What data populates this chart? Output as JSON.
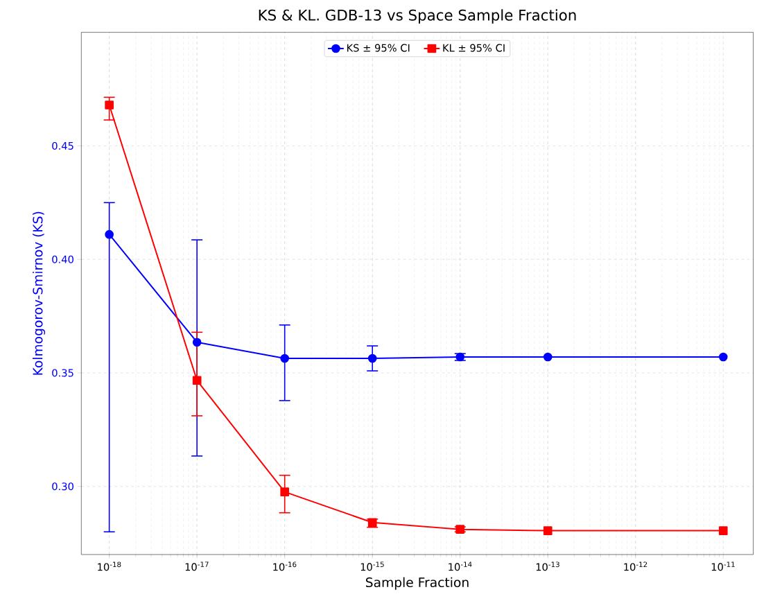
{
  "chart_data": {
    "type": "line",
    "title": "KS & KL. GDB-13 vs Space Sample Fraction",
    "xlabel": "Sample Fraction",
    "ylabel": "Kolmogorov-Smirnov (KS)",
    "x": [
      1e-18,
      1e-17,
      1e-16,
      1e-15,
      1e-14,
      1e-13,
      1e-11
    ],
    "series": [
      {
        "name": "KS ± 95% CI",
        "color": "#0000ff",
        "marker": "circle",
        "values": [
          0.411,
          0.3635,
          0.3564,
          0.3564,
          0.357,
          0.357,
          0.357
        ],
        "errors": [
          [
            0.28,
            0.425
          ],
          [
            0.3134,
            0.4086
          ],
          [
            0.3378,
            0.3711
          ],
          [
            0.3509,
            0.3619
          ],
          [
            0.3555,
            0.3585
          ],
          null,
          null
        ]
      },
      {
        "name": "KL ± 95% CI",
        "color": "#ff0000",
        "marker": "square",
        "values": [
          0.468,
          0.3467,
          0.2976,
          0.2841,
          0.2811,
          0.2805,
          0.2805
        ],
        "errors": [
          [
            0.4614,
            0.4714
          ],
          [
            0.3311,
            0.3679
          ],
          [
            0.2884,
            0.3049
          ],
          [
            0.282,
            0.2856
          ],
          [
            0.28,
            0.2822
          ],
          null,
          null
        ]
      }
    ],
    "log": "x",
    "xlim": [
      4.8e-19,
      2.2e-11
    ],
    "xticks": [
      {
        "value": 1e-18,
        "label": "10$^{-18}$"
      },
      {
        "value": 1e-17,
        "label": "10$^{-17}$"
      },
      {
        "value": 1e-16,
        "label": "10$^{-16}$"
      },
      {
        "value": 1e-15,
        "label": "10$^{-15}$"
      },
      {
        "value": 1e-14,
        "label": "10$^{-14}$"
      },
      {
        "value": 1e-13,
        "label": "10$^{-13}$"
      },
      {
        "value": 1e-12,
        "label": "10$^{-12}$"
      },
      {
        "value": 1e-11,
        "label": "10$^{-11}$"
      }
    ],
    "ylim": [
      0.27,
      0.5
    ],
    "yticks": [
      {
        "value": 0.3,
        "label": "0.30"
      },
      {
        "value": 0.35,
        "label": "0.35"
      },
      {
        "value": 0.4,
        "label": "0.40"
      },
      {
        "value": 0.45,
        "label": "0.45"
      }
    ],
    "grid": true,
    "legend": "top"
  }
}
